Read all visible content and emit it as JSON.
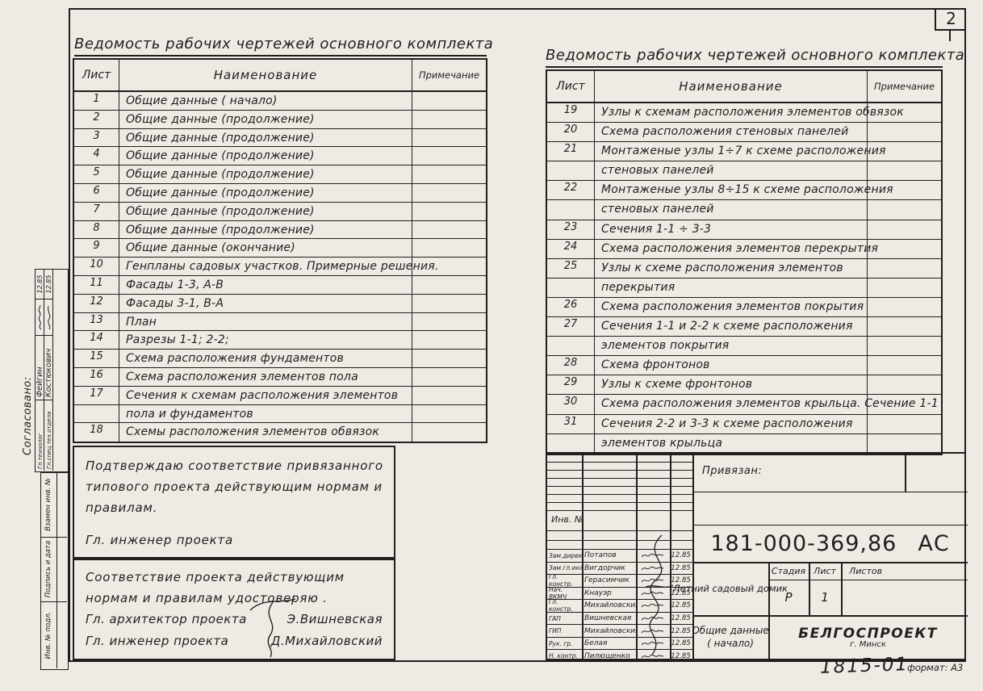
{
  "page": {
    "number": "2"
  },
  "left_table": {
    "title": "Ведомость рабочих чертежей основного комплекта",
    "columns": {
      "sheet": "Лист",
      "name": "Наименование",
      "note": "Примечание"
    },
    "rows": [
      {
        "sheet": "1",
        "text": "Общие данные ( начало)"
      },
      {
        "sheet": "2",
        "text": "Общие данные (продолжение)"
      },
      {
        "sheet": "3",
        "text": "Общие данные (продолжение)"
      },
      {
        "sheet": "4",
        "text": "Общие данные (продолжение)"
      },
      {
        "sheet": "5",
        "text": "Общие данные (продолжение)"
      },
      {
        "sheet": "6",
        "text": "Общие данные (продолжение)"
      },
      {
        "sheet": "7",
        "text": "Общие данные (продолжение)"
      },
      {
        "sheet": "8",
        "text": "Общие данные (продолжение)"
      },
      {
        "sheet": "9",
        "text": "Общие данные (окончание)"
      },
      {
        "sheet": "10",
        "text": "Генпланы садовых участков. Примерные решения."
      },
      {
        "sheet": "11",
        "text": "Фасады 1-3, А-В"
      },
      {
        "sheet": "12",
        "text": "Фасады 3-1, В-А"
      },
      {
        "sheet": "13",
        "text": "План"
      },
      {
        "sheet": "14",
        "text": "Разрезы 1-1; 2-2;"
      },
      {
        "sheet": "15",
        "text": "Схема расположения фундаментов"
      },
      {
        "sheet": "16",
        "text": "Схема расположения элементов пола"
      },
      {
        "sheet": "17",
        "text": "Сечения к схемам расположения элементов"
      },
      {
        "sheet": "",
        "text": "пола и фундаментов"
      },
      {
        "sheet": "18",
        "text": "Схемы расположения элементов обвязок"
      }
    ]
  },
  "right_table": {
    "title": "Ведомость рабочих чертежей основного комплекта",
    "columns": {
      "sheet": "Лист",
      "name": "Наименование",
      "note": "Примечание"
    },
    "rows": [
      {
        "sheet": "19",
        "text": "Узлы к схемам расположения элементов обвязок"
      },
      {
        "sheet": "20",
        "text": "Схема расположения стеновых панелей"
      },
      {
        "sheet": "21",
        "text": "Монтаженые узлы 1÷7 к схеме расположения"
      },
      {
        "sheet": "",
        "text": "стеновых панелей"
      },
      {
        "sheet": "22",
        "text": "Монтаженые узлы 8÷15 к схеме расположения"
      },
      {
        "sheet": "",
        "text": "стеновых панелей"
      },
      {
        "sheet": "23",
        "text": "Сечения 1-1 ÷ 3-3"
      },
      {
        "sheet": "24",
        "text": "Схема расположения элементов перекрытия"
      },
      {
        "sheet": "25",
        "text": "Узлы к схеме расположения  элементов"
      },
      {
        "sheet": "",
        "text": "перекрытия"
      },
      {
        "sheet": "26",
        "text": "Схема расположения элементов покрытия"
      },
      {
        "sheet": "27",
        "text": "Сечения 1-1 и 2-2 к схеме расположения"
      },
      {
        "sheet": "",
        "text": "элементов покрытия"
      },
      {
        "sheet": "28",
        "text": "Схема фронтонов"
      },
      {
        "sheet": "29",
        "text": "Узлы к схеме фронтонов"
      },
      {
        "sheet": "30",
        "text": "Схема расположения элементов крыльца. Сечение 1-1"
      },
      {
        "sheet": "31",
        "text": "Сечения 2-2 и 3-3 к схеме расположения"
      },
      {
        "sheet": "",
        "text": "элементов крыльца"
      }
    ]
  },
  "certify1": {
    "lines": [
      "Подтверждаю соответствие  привязанного",
      "типового проекта действующим нормам и",
      "правилам."
    ],
    "role": "Гл. инженер проекта"
  },
  "certify2": {
    "lines": [
      "Соответствие проекта действующим",
      "нормам и правилам удостоверяю ."
    ],
    "signers": [
      {
        "role": "Гл. архитектор проекта",
        "name": "Э.Вишневская"
      },
      {
        "role": "Гл. инженер проекта",
        "name": "Д.Михайловский"
      }
    ]
  },
  "side": {
    "approved_label": "Согласовано:",
    "rows": [
      {
        "role": "Гл.технолог",
        "name": "Фейгин",
        "date": "12.85"
      },
      {
        "role": "Гл.спец.тех.отдела",
        "name": "Костюкович",
        "date": "12.85"
      }
    ],
    "frame_labels": [
      "Взамен инв. №",
      "Подпись и дата",
      "Инв. № подл."
    ]
  },
  "stamp": {
    "inv_label": "Инв. №",
    "attached_label": "Привязан:",
    "doc_number": "181-000-369,86",
    "doc_suffix": "АС",
    "project": "Летний садовый домик",
    "sheet_title_line1": "Общие данные",
    "sheet_title_line2": "( начало)",
    "org": "БЕЛГОСПРОЕКТ",
    "org_city": "г. Минск",
    "stage_label": "Стадия",
    "sheet_label": "Лист",
    "sheets_label": "Листов",
    "stage": "Р",
    "sheet_no": "1",
    "sheets_total": "",
    "signers": [
      {
        "role": "Зам.директ.",
        "name": "Потапов",
        "date": "12.85"
      },
      {
        "role": "Зам.гл.инж.",
        "name": "Вигдорчик",
        "date": "12.85"
      },
      {
        "role": "Гл. констр.",
        "name": "Герасимчик",
        "date": "12.85"
      },
      {
        "role": "Нач. ВКМЧ",
        "name": "Кнауэр",
        "date": "12.85"
      },
      {
        "role": "Гл. констр.",
        "name": "Михайловский",
        "date": "12.85"
      },
      {
        "role": "ГАП",
        "name": "Вишневская",
        "date": "12.85"
      },
      {
        "role": "ГИП",
        "name": "Михайловский",
        "date": "12.85"
      },
      {
        "role": "Рук. гр.",
        "name": "Белая",
        "date": "12.85"
      },
      {
        "role": "Н. контр.",
        "name": "Пилющенко",
        "date": "12.85"
      }
    ],
    "archive_number": "1815-01",
    "format_label": "формат: А3"
  }
}
